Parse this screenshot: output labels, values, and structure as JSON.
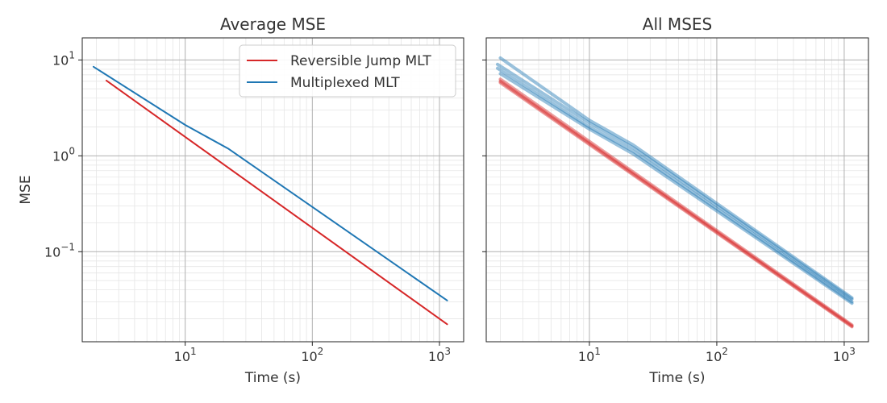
{
  "colors": {
    "reversible_jump": "#d62728",
    "multiplexed": "#1f77b4",
    "grid_major": "#b0b0b0",
    "grid_minor": "#e6e6e6",
    "text": "#333333"
  },
  "chart_data": [
    {
      "type": "line",
      "title": "Average MSE",
      "xlabel": "Time (s)",
      "ylabel": "MSE",
      "xscale": "log",
      "yscale": "log",
      "xlim": [
        1.55,
        1550
      ],
      "ylim": [
        0.0115,
        17
      ],
      "xticks": [
        {
          "base": "10",
          "exp": "1",
          "value": 10
        },
        {
          "base": "10",
          "exp": "2",
          "value": 100
        },
        {
          "base": "10",
          "exp": "3",
          "value": 1000
        }
      ],
      "yticks": [
        {
          "base": "10",
          "exp": "−1",
          "value": 0.1
        },
        {
          "base": "10",
          "exp": "0",
          "value": 1
        },
        {
          "base": "10",
          "exp": "1",
          "value": 10
        }
      ],
      "grid": true,
      "legend": "top-right",
      "series": [
        {
          "name": "Reversible Jump MLT",
          "x": [
            2.4,
            1150
          ],
          "y": [
            6.1,
            0.0175
          ]
        },
        {
          "name": "Multiplexed MLT",
          "x": [
            1.9,
            10,
            22,
            1150
          ],
          "y": [
            8.5,
            2.1,
            1.18,
            0.031
          ]
        }
      ]
    },
    {
      "type": "line",
      "title": "All MSES",
      "xlabel": "Time (s)",
      "ylabel": "",
      "xscale": "log",
      "yscale": "log",
      "xlim": [
        1.55,
        1550
      ],
      "ylim": [
        0.0115,
        17
      ],
      "xticks": [
        {
          "base": "10",
          "exp": "1",
          "value": 10
        },
        {
          "base": "10",
          "exp": "2",
          "value": 100
        },
        {
          "base": "10",
          "exp": "3",
          "value": 1000
        }
      ],
      "yticks": [
        {
          "value": 0.1
        },
        {
          "value": 1
        },
        {
          "value": 10
        }
      ],
      "grid": true,
      "legend": "none",
      "series": [
        {
          "x": [
            2.0,
            1150
          ],
          "y": [
            6.3,
            0.0172
          ]
        },
        {
          "x": [
            2.0,
            1150
          ],
          "y": [
            6.0,
            0.0168
          ]
        },
        {
          "x": [
            2.0,
            1150
          ],
          "y": [
            5.8,
            0.0165
          ]
        },
        {
          "x": [
            1.9,
            10,
            22,
            1150
          ],
          "y": [
            9.0,
            2.2,
            1.22,
            0.032
          ]
        },
        {
          "x": [
            1.9,
            10,
            22,
            1150
          ],
          "y": [
            8.2,
            2.0,
            1.12,
            0.03
          ]
        },
        {
          "x": [
            2.0,
            10,
            22,
            1150
          ],
          "y": [
            10.5,
            2.35,
            1.3,
            0.033
          ]
        },
        {
          "x": [
            2.0,
            10,
            22,
            1150
          ],
          "y": [
            7.2,
            1.9,
            1.05,
            0.029
          ]
        }
      ]
    }
  ]
}
